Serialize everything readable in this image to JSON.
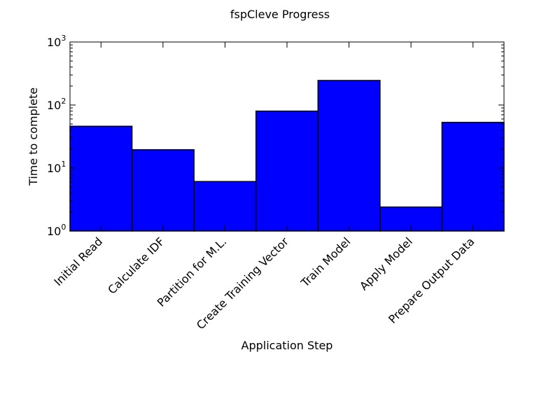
{
  "chart_data": {
    "type": "bar",
    "title": "fspCleve Progress",
    "xlabel": "Application Step",
    "ylabel": "Time to complete",
    "yscale": "log",
    "ylim": [
      1,
      1000
    ],
    "categories": [
      "Initial Read",
      "Calculate IDF",
      "Partition for M.L.",
      "Create Training Vector",
      "Train Model",
      "Apply Model",
      "Prepare Output Data"
    ],
    "values": [
      46,
      19.5,
      6.1,
      80,
      245,
      2.4,
      53
    ],
    "y_ticks": [
      {
        "base": "10",
        "exp": "0",
        "value": 1
      },
      {
        "base": "10",
        "exp": "1",
        "value": 10
      },
      {
        "base": "10",
        "exp": "2",
        "value": 100
      },
      {
        "base": "10",
        "exp": "3",
        "value": 1000
      }
    ],
    "bar_color": "#0000ff",
    "edge_color": "#000000",
    "grid": false
  }
}
